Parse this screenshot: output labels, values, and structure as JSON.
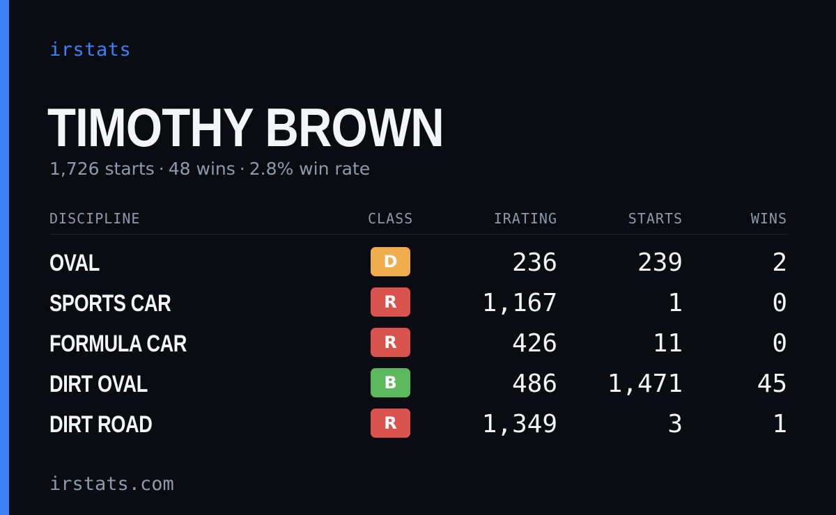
{
  "brand": "irstats",
  "player": {
    "name": "TIMOTHY BROWN",
    "starts_text": "1,726 starts",
    "wins_text": "48 wins",
    "win_rate_text": "2.8% win rate",
    "separator": "·"
  },
  "table": {
    "headers": {
      "discipline": "DISCIPLINE",
      "class": "CLASS",
      "irating": "IRATING",
      "starts": "STARTS",
      "wins": "WINS"
    },
    "rows": [
      {
        "discipline": "OVAL",
        "class": "D",
        "class_color": "#f0ad4e",
        "irating": "236",
        "starts": "239",
        "wins": "2"
      },
      {
        "discipline": "SPORTS CAR",
        "class": "R",
        "class_color": "#d9534f",
        "irating": "1,167",
        "starts": "1",
        "wins": "0"
      },
      {
        "discipline": "FORMULA CAR",
        "class": "R",
        "class_color": "#d9534f",
        "irating": "426",
        "starts": "11",
        "wins": "0"
      },
      {
        "discipline": "DIRT OVAL",
        "class": "B",
        "class_color": "#5cb85c",
        "irating": "486",
        "starts": "1,471",
        "wins": "45"
      },
      {
        "discipline": "DIRT ROAD",
        "class": "R",
        "class_color": "#d9534f",
        "irating": "1,349",
        "starts": "3",
        "wins": "1"
      }
    ]
  },
  "footer": "irstats.com",
  "colors": {
    "accent": "#3b82f6",
    "background": "#0a0c12",
    "text": "#f4f5f8",
    "muted": "#8d99ad"
  }
}
